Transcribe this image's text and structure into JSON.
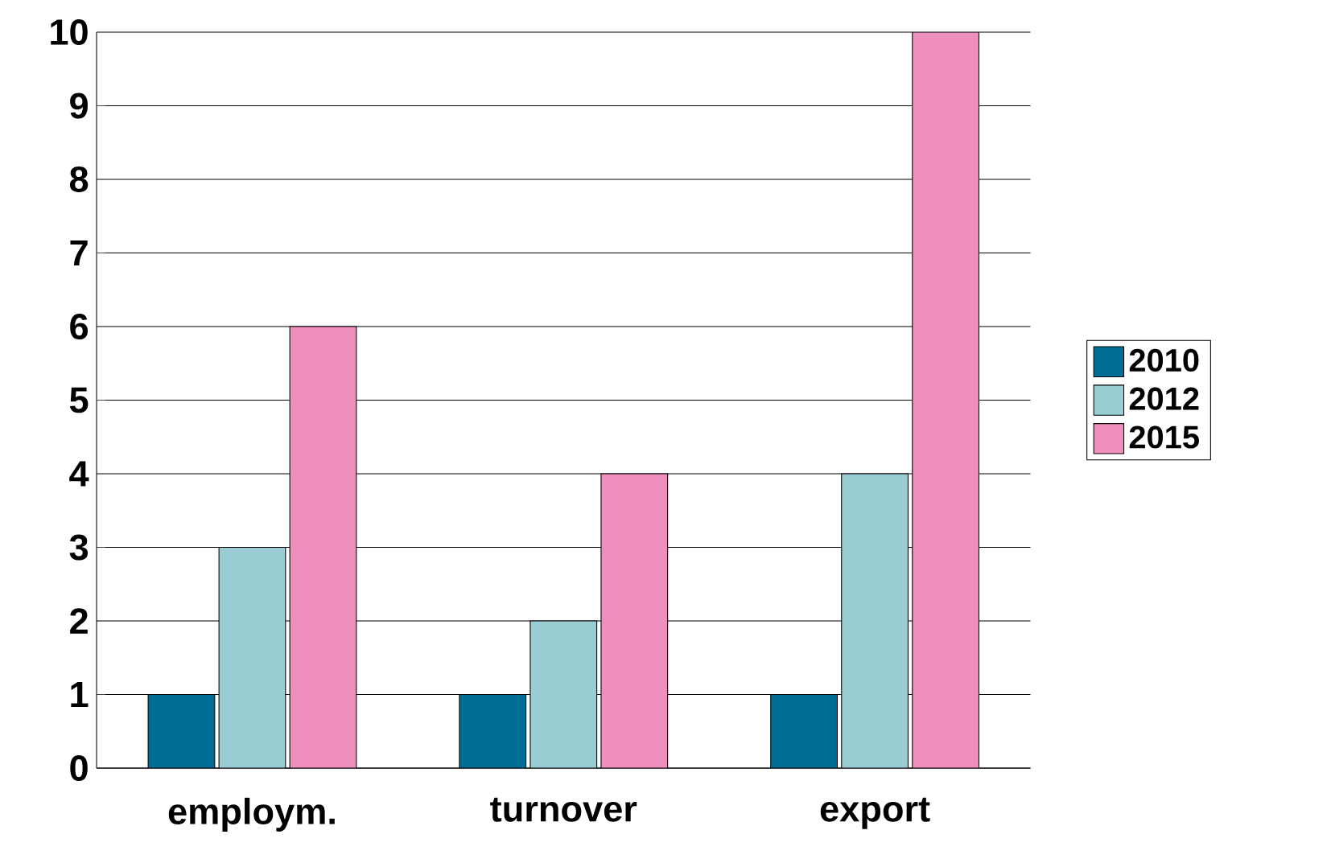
{
  "chart_data": {
    "type": "bar",
    "categories": [
      "employm.",
      "turnover",
      "export"
    ],
    "series": [
      {
        "name": "2010",
        "color": "#006d96",
        "values": [
          1,
          1,
          1
        ]
      },
      {
        "name": "2012",
        "color": "#99ccd3",
        "values": [
          3,
          2,
          4
        ]
      },
      {
        "name": "2015",
        "color": "#ee8fbe",
        "values": [
          6,
          4,
          10
        ]
      }
    ],
    "ylim": [
      0,
      10
    ],
    "yticks": [
      0,
      1,
      2,
      3,
      4,
      5,
      6,
      7,
      8,
      9,
      10
    ],
    "grid": "y",
    "legend": "right"
  }
}
